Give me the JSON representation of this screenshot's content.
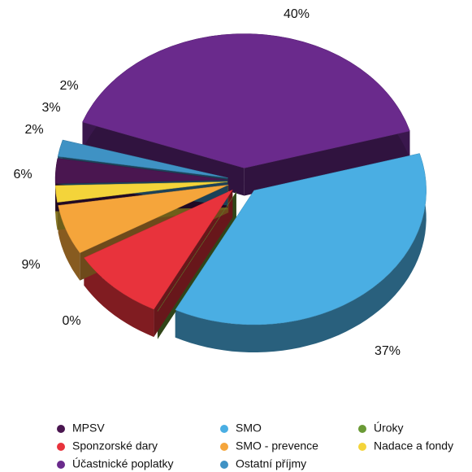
{
  "chart_data": {
    "type": "pie3d",
    "categories": [
      "MPSV",
      "Sponzorské dary",
      "Účastnické poplatky",
      "SMO",
      "SMO - prevence",
      "Ostatní příjmy",
      "Úroky",
      "Nadace a fondy"
    ],
    "values": [
      3,
      9,
      40,
      37,
      6,
      2,
      0,
      2
    ],
    "value_labels": [
      "3%",
      "9%",
      "40%",
      "37%",
      "6%",
      "2%",
      "0%",
      "2%"
    ],
    "colors": [
      "#4a1650",
      "#e8333c",
      "#6a2a8c",
      "#4aaee3",
      "#f5a53b",
      "#3f92c4",
      "#6a9a36",
      "#f4d43a"
    ]
  }
}
